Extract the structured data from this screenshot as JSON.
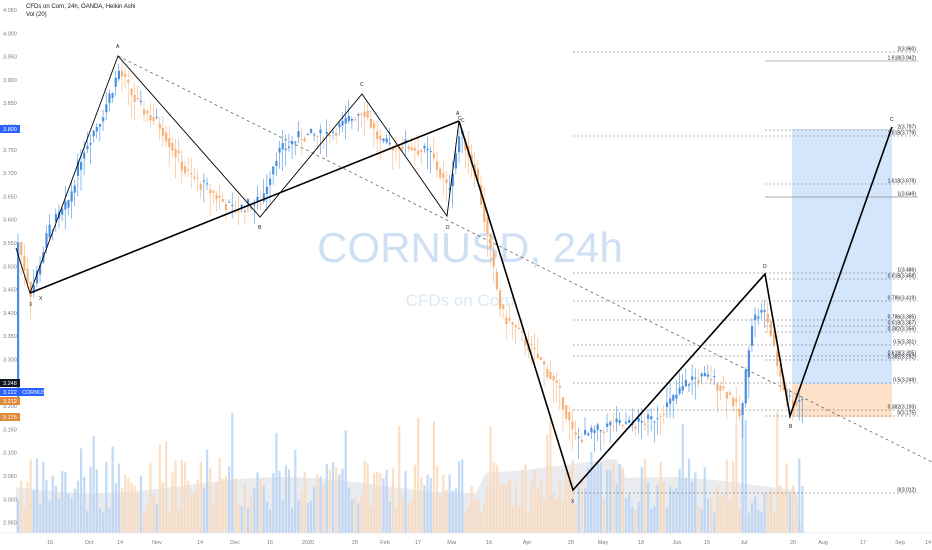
{
  "header": {
    "title": "CFDs on Corn, 24h, OANDA, Heikin Ashi",
    "volume_label": "Vol (20)"
  },
  "watermark": {
    "symbol": "CORNUSD, 24h",
    "description": "CFDs on Corn"
  },
  "colors": {
    "up": "#4a90e2",
    "down": "#f7b27a",
    "volume_up": "#b7d4f4",
    "volume_down": "#fbd8b8",
    "line": "#000000",
    "blue_zone": "#cfe3fb",
    "orange_zone": "#fde0c6",
    "axis_tag_current": "#2962ff",
    "axis_tag_dark": "#131722",
    "axis_tag_orange": "#e08a3c"
  },
  "chart_data": {
    "type": "candlestick",
    "y_axis": {
      "ticks": [
        "4.050",
        "4.000",
        "3.950",
        "3.900",
        "3.850",
        "3.800",
        "3.750",
        "3.700",
        "3.650",
        "3.600",
        "3.550",
        "3.500",
        "3.450",
        "3.400",
        "3.350",
        "3.300",
        "3.250",
        "3.200",
        "3.150",
        "3.100",
        "3.050",
        "3.000",
        "2.950"
      ],
      "range": [
        2.935,
        4.06
      ]
    },
    "x_axis": {
      "ticks": [
        "16",
        "Oct",
        "14",
        "Nov",
        "14",
        "Dec",
        "16",
        "2020",
        "20",
        "Feb",
        "17",
        "Mar",
        "16",
        "Apr",
        "20",
        "May",
        "18",
        "Jun",
        "15",
        "Jul",
        "20",
        "Aug",
        "17",
        "Sep",
        "14"
      ]
    },
    "price_labels": {
      "tag_top": "3.800",
      "tag_mid1": "3.248",
      "tag_current": "3.222",
      "tag_mid2": "3.212",
      "tag_low": "3.175"
    },
    "symbol_tag": "CORNUSD",
    "pattern_points": [
      "A",
      "A",
      "B",
      "B",
      "C",
      "C",
      "D",
      "D",
      "X",
      "X",
      "X",
      "C",
      "C"
    ],
    "fib_levels_upper": [
      "2(3.960)",
      "1.618(3.942)",
      "2(3.797)",
      "1.618(3.779)",
      "1.618(3.678)",
      "1(3.649)"
    ],
    "fib_levels_lower": [
      "1(3.486)",
      "0.618(3.468)",
      "0.786(3.419)",
      "0.786(3.385)",
      "0.618(3.367)",
      "0.382(3.356)",
      "0.5(3.331)",
      "0.618(3.305)",
      "0.382(3.292)",
      "0.5(3.249)",
      "0.382(3.193)",
      "0(3.175)",
      "0(3.012)"
    ]
  }
}
